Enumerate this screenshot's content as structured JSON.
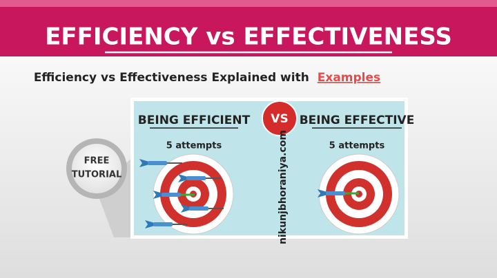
{
  "header": {
    "title": "EFFICIENCY vs EFFECTIVENESS"
  },
  "subtitle": {
    "text": "Efficiency vs Effectiveness Explained with",
    "highlight": "Examples"
  },
  "badge": {
    "line1": "FREE",
    "line2": "TUTORIAL"
  },
  "card": {
    "left": {
      "heading": "BEING EFFICIENT",
      "caption": "5 attempts"
    },
    "vs": "VS",
    "watermark": "nikunjbhoraniya.com",
    "right": {
      "heading": "BEING EFFECTIVE",
      "caption": "5 attempts"
    }
  }
}
